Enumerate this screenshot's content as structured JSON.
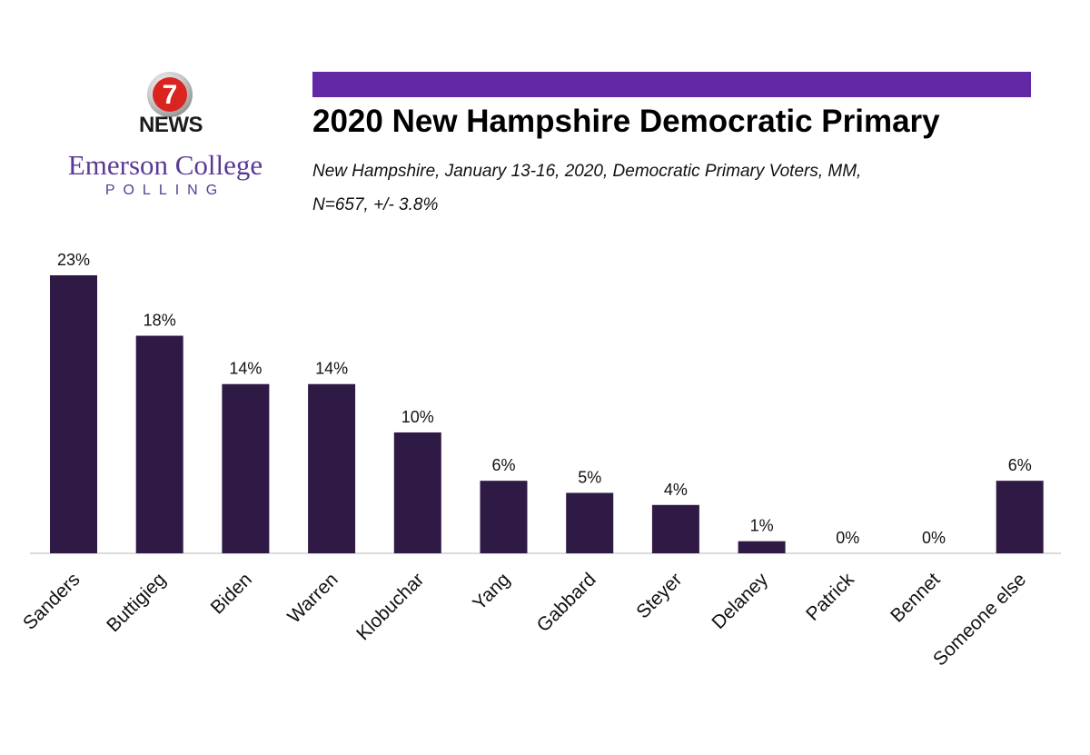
{
  "logo": {
    "channel_number": "7",
    "channel_name": "NEWS",
    "org_name": "Emerson College",
    "org_sub": "POLLING",
    "colors": {
      "channel_red": "#d9241f",
      "org_purple": "#5a3a96"
    }
  },
  "header": {
    "accent_color": "#6328a6",
    "title": "2020 New Hampshire Democratic Primary",
    "subtitle_line1": "New Hampshire, January 13-16, 2020, Democratic Primary Voters, MM,",
    "subtitle_line2": "N=657,   +/-  3.8%"
  },
  "chart_data": {
    "type": "bar",
    "title": "2020 New Hampshire Democratic Primary",
    "xlabel": "",
    "ylabel": "",
    "categories": [
      "Sanders",
      "Buttigieg",
      "Biden",
      "Warren",
      "Klobuchar",
      "Yang",
      "Gabbard",
      "Steyer",
      "Delaney",
      "Patrick",
      "Bennet",
      "Someone else"
    ],
    "values": [
      23,
      18,
      14,
      14,
      10,
      6,
      5,
      4,
      1,
      0,
      0,
      6
    ],
    "value_labels": [
      "23%",
      "18%",
      "14%",
      "14%",
      "10%",
      "6%",
      "5%",
      "4%",
      "1%",
      "0%",
      "0%",
      "6%"
    ],
    "ylim": [
      0,
      23
    ],
    "grid": false,
    "legend": "none",
    "bar_color": "#2f1a46"
  }
}
